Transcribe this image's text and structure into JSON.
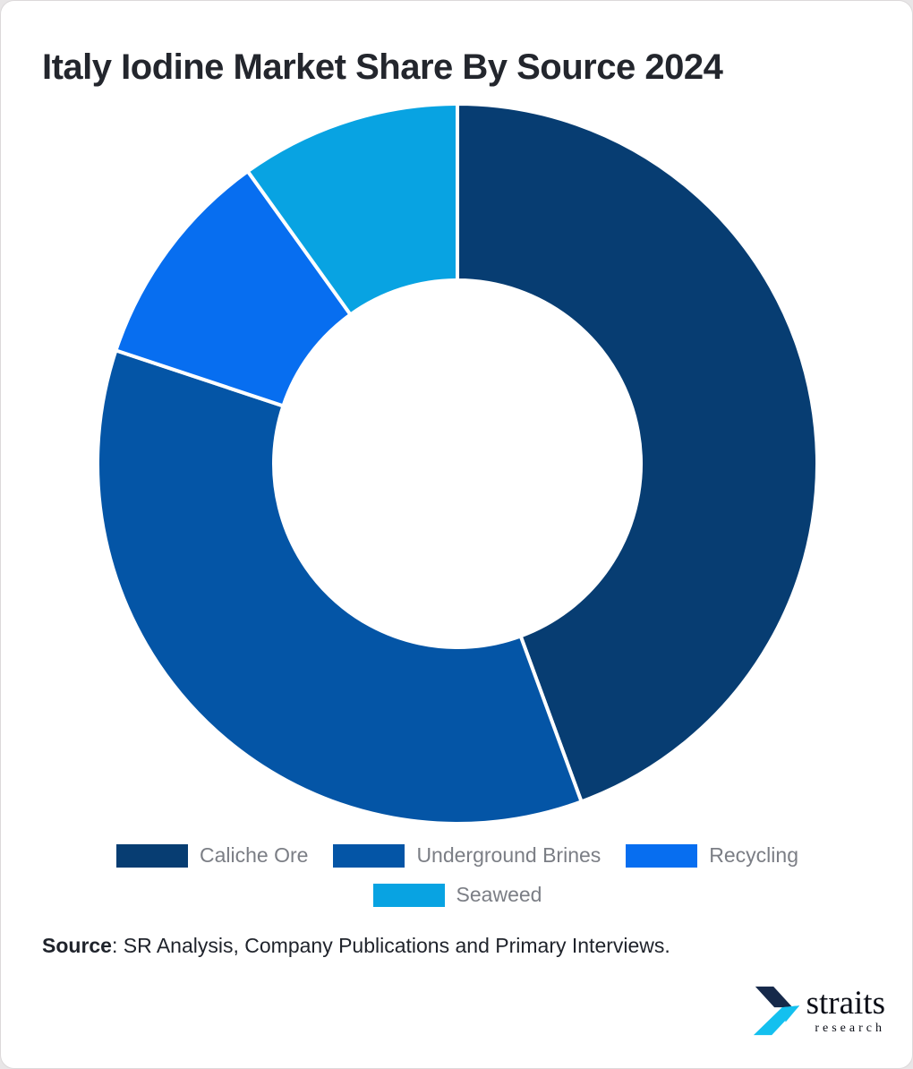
{
  "title": "Italy Iodine Market Share By Source 2024",
  "chart_data": {
    "type": "pie",
    "subtype": "donut",
    "title": "Italy Iodine Market Share By Source 2024",
    "start_angle_deg": 0,
    "direction": "clockwise",
    "inner_radius_ratio": 0.51,
    "legend_position": "bottom",
    "segments": [
      {
        "label": "Caliche Ore",
        "value": 44.4,
        "color": "#073D72"
      },
      {
        "label": "Underground Brines",
        "value": 35.7,
        "color": "#0455A6"
      },
      {
        "label": "Recycling",
        "value": 10.0,
        "color": "#076EF0"
      },
      {
        "label": "Seaweed",
        "value": 9.9,
        "color": "#08A3E2"
      }
    ]
  },
  "source": {
    "label": "Source",
    "rest": ": SR Analysis, Company Publications and Primary Interviews."
  },
  "logo": {
    "name": "straits",
    "sub": "research",
    "dark_color": "#16294A",
    "cyan_color": "#14C0EF"
  }
}
